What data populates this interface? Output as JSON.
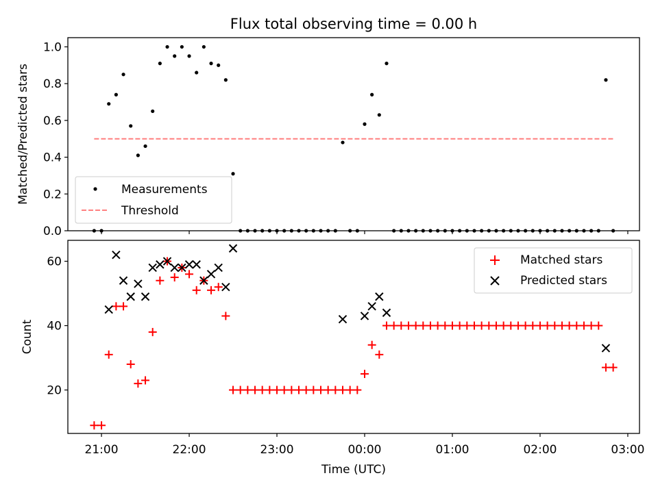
{
  "chart_data": [
    {
      "type": "scatter",
      "title": "Flux total observing time = 0.00 h",
      "ylabel": "Matched/Predicted stars",
      "xlabel": "",
      "xlim": [
        "20:37",
        "03:08"
      ],
      "ylim": [
        0,
        1.05
      ],
      "yticks": [
        0.0,
        0.2,
        0.4,
        0.6,
        0.8,
        1.0
      ],
      "ytick_labels": [
        "0.0",
        "0.2",
        "0.4",
        "0.6",
        "0.8",
        "1.0"
      ],
      "legend_position": "lower-left",
      "grid": false,
      "series": [
        {
          "name": "Measurements",
          "marker": "dot",
          "color": "#000000",
          "points": [
            [
              "20:55",
              0.0
            ],
            [
              "21:00",
              0.0
            ],
            [
              "21:05",
              0.69
            ],
            [
              "21:10",
              0.74
            ],
            [
              "21:15",
              0.85
            ],
            [
              "21:20",
              0.57
            ],
            [
              "21:25",
              0.41
            ],
            [
              "21:30",
              0.46
            ],
            [
              "21:35",
              0.65
            ],
            [
              "21:40",
              0.91
            ],
            [
              "21:45",
              1.0
            ],
            [
              "21:50",
              0.95
            ],
            [
              "21:55",
              1.0
            ],
            [
              "22:00",
              0.95
            ],
            [
              "22:05",
              0.86
            ],
            [
              "22:10",
              1.0
            ],
            [
              "22:15",
              0.91
            ],
            [
              "22:20",
              0.9
            ],
            [
              "22:25",
              0.82
            ],
            [
              "22:30",
              0.31
            ],
            [
              "22:35",
              0.0
            ],
            [
              "22:40",
              0.0
            ],
            [
              "22:45",
              0.0
            ],
            [
              "22:50",
              0.0
            ],
            [
              "22:55",
              0.0
            ],
            [
              "23:00",
              0.0
            ],
            [
              "23:05",
              0.0
            ],
            [
              "23:10",
              0.0
            ],
            [
              "23:15",
              0.0
            ],
            [
              "23:20",
              0.0
            ],
            [
              "23:25",
              0.0
            ],
            [
              "23:30",
              0.0
            ],
            [
              "23:35",
              0.0
            ],
            [
              "23:40",
              0.0
            ],
            [
              "23:45",
              0.48
            ],
            [
              "23:50",
              0.0
            ],
            [
              "23:55",
              0.0
            ],
            [
              "00:00",
              0.58
            ],
            [
              "00:05",
              0.74
            ],
            [
              "00:10",
              0.63
            ],
            [
              "00:15",
              0.91
            ],
            [
              "00:20",
              0.0
            ],
            [
              "00:25",
              0.0
            ],
            [
              "00:30",
              0.0
            ],
            [
              "00:35",
              0.0
            ],
            [
              "00:40",
              0.0
            ],
            [
              "00:45",
              0.0
            ],
            [
              "00:50",
              0.0
            ],
            [
              "00:55",
              0.0
            ],
            [
              "01:00",
              0.0
            ],
            [
              "01:05",
              0.0
            ],
            [
              "01:10",
              0.0
            ],
            [
              "01:15",
              0.0
            ],
            [
              "01:20",
              0.0
            ],
            [
              "01:25",
              0.0
            ],
            [
              "01:30",
              0.0
            ],
            [
              "01:35",
              0.0
            ],
            [
              "01:40",
              0.0
            ],
            [
              "01:45",
              0.0
            ],
            [
              "01:50",
              0.0
            ],
            [
              "01:55",
              0.0
            ],
            [
              "02:00",
              0.0
            ],
            [
              "02:05",
              0.0
            ],
            [
              "02:10",
              0.0
            ],
            [
              "02:15",
              0.0
            ],
            [
              "02:20",
              0.0
            ],
            [
              "02:25",
              0.0
            ],
            [
              "02:30",
              0.0
            ],
            [
              "02:35",
              0.0
            ],
            [
              "02:40",
              0.0
            ],
            [
              "02:45",
              0.82
            ],
            [
              "02:50",
              0.0
            ]
          ]
        },
        {
          "name": "Threshold",
          "marker": "dashed-line",
          "color": "#ff7f7f",
          "points": [
            [
              "20:55",
              0.5
            ],
            [
              "02:50",
              0.5
            ]
          ]
        }
      ]
    },
    {
      "type": "scatter",
      "title": "",
      "ylabel": "Count",
      "xlabel": "Time (UTC)",
      "xlim": [
        "20:37",
        "03:08"
      ],
      "ylim": [
        6.5,
        66.5
      ],
      "yticks": [
        20,
        40,
        60
      ],
      "ytick_labels": [
        "20",
        "40",
        "60"
      ],
      "xticks": [
        "21:00",
        "22:00",
        "23:00",
        "00:00",
        "01:00",
        "02:00",
        "03:00"
      ],
      "xtick_labels": [
        "21:00",
        "22:00",
        "23:00",
        "00:00",
        "01:00",
        "02:00",
        "03:00"
      ],
      "legend_position": "upper-right",
      "grid": false,
      "series": [
        {
          "name": "Matched stars",
          "marker": "plus",
          "color": "#ff0000",
          "points": [
            [
              "20:55",
              9
            ],
            [
              "21:00",
              9
            ],
            [
              "21:05",
              31
            ],
            [
              "21:10",
              46
            ],
            [
              "21:15",
              46
            ],
            [
              "21:20",
              28
            ],
            [
              "21:25",
              22
            ],
            [
              "21:30",
              23
            ],
            [
              "21:35",
              38
            ],
            [
              "21:40",
              54
            ],
            [
              "21:45",
              60
            ],
            [
              "21:50",
              55
            ],
            [
              "21:55",
              58
            ],
            [
              "22:00",
              56
            ],
            [
              "22:05",
              51
            ],
            [
              "22:10",
              54
            ],
            [
              "22:15",
              51
            ],
            [
              "22:20",
              52
            ],
            [
              "22:25",
              43
            ],
            [
              "22:30",
              20
            ],
            [
              "22:35",
              20
            ],
            [
              "22:40",
              20
            ],
            [
              "22:45",
              20
            ],
            [
              "22:50",
              20
            ],
            [
              "22:55",
              20
            ],
            [
              "23:00",
              20
            ],
            [
              "23:05",
              20
            ],
            [
              "23:10",
              20
            ],
            [
              "23:15",
              20
            ],
            [
              "23:20",
              20
            ],
            [
              "23:25",
              20
            ],
            [
              "23:30",
              20
            ],
            [
              "23:35",
              20
            ],
            [
              "23:40",
              20
            ],
            [
              "23:45",
              20
            ],
            [
              "23:50",
              20
            ],
            [
              "23:55",
              20
            ],
            [
              "00:00",
              25
            ],
            [
              "00:05",
              34
            ],
            [
              "00:10",
              31
            ],
            [
              "00:15",
              40
            ],
            [
              "00:20",
              40
            ],
            [
              "00:25",
              40
            ],
            [
              "00:30",
              40
            ],
            [
              "00:35",
              40
            ],
            [
              "00:40",
              40
            ],
            [
              "00:45",
              40
            ],
            [
              "00:50",
              40
            ],
            [
              "00:55",
              40
            ],
            [
              "01:00",
              40
            ],
            [
              "01:05",
              40
            ],
            [
              "01:10",
              40
            ],
            [
              "01:15",
              40
            ],
            [
              "01:20",
              40
            ],
            [
              "01:25",
              40
            ],
            [
              "01:30",
              40
            ],
            [
              "01:35",
              40
            ],
            [
              "01:40",
              40
            ],
            [
              "01:45",
              40
            ],
            [
              "01:50",
              40
            ],
            [
              "01:55",
              40
            ],
            [
              "02:00",
              40
            ],
            [
              "02:05",
              40
            ],
            [
              "02:10",
              40
            ],
            [
              "02:15",
              40
            ],
            [
              "02:20",
              40
            ],
            [
              "02:25",
              40
            ],
            [
              "02:30",
              40
            ],
            [
              "02:35",
              40
            ],
            [
              "02:40",
              40
            ],
            [
              "02:45",
              27
            ],
            [
              "02:50",
              27
            ]
          ]
        },
        {
          "name": "Predicted stars",
          "marker": "x",
          "color": "#000000",
          "points": [
            [
              "21:05",
              45
            ],
            [
              "21:10",
              62
            ],
            [
              "21:15",
              54
            ],
            [
              "21:20",
              49
            ],
            [
              "21:25",
              53
            ],
            [
              "21:30",
              49
            ],
            [
              "21:35",
              58
            ],
            [
              "21:40",
              59
            ],
            [
              "21:45",
              60
            ],
            [
              "21:50",
              58
            ],
            [
              "21:55",
              58
            ],
            [
              "22:00",
              59
            ],
            [
              "22:05",
              59
            ],
            [
              "22:10",
              54
            ],
            [
              "22:15",
              56
            ],
            [
              "22:20",
              58
            ],
            [
              "22:25",
              52
            ],
            [
              "22:30",
              64
            ],
            [
              "23:45",
              42
            ],
            [
              "00:00",
              43
            ],
            [
              "00:05",
              46
            ],
            [
              "00:10",
              49
            ],
            [
              "00:15",
              44
            ],
            [
              "02:45",
              33
            ]
          ]
        }
      ]
    }
  ]
}
